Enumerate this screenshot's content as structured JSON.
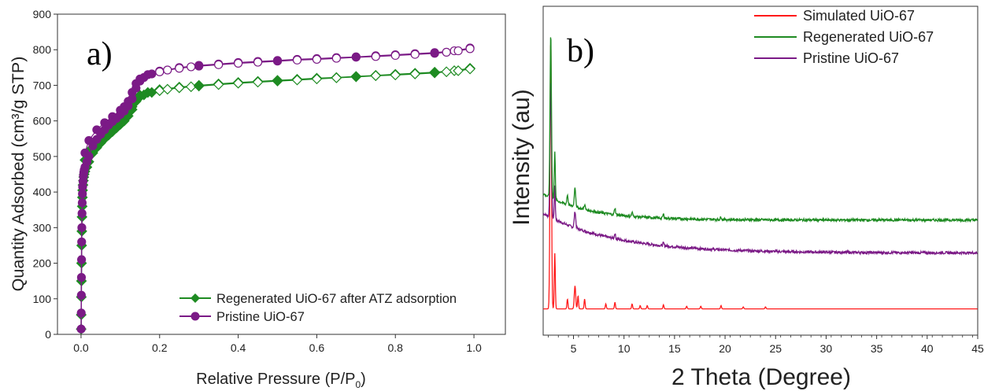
{
  "chart_data": [
    {
      "panel_label": "a)",
      "type": "scatter",
      "title": "",
      "xlabel": "Relative Pressure (P/P",
      "xlabel_sub": "0",
      "xlabel_close": ")",
      "ylabel": "Quantity Adsorbed (cm³/g STP)",
      "xlim": [
        -0.06,
        1.08
      ],
      "ylim": [
        0,
        900
      ],
      "xticks": [
        "0.0",
        "0.2",
        "0.4",
        "0.6",
        "0.8",
        "1.0"
      ],
      "xtick_values": [
        0,
        0.2,
        0.4,
        0.6,
        0.8,
        1.0
      ],
      "yticks": [
        "0",
        "100",
        "200",
        "300",
        "400",
        "500",
        "600",
        "700",
        "800",
        "900"
      ],
      "ytick_values": [
        0,
        100,
        200,
        300,
        400,
        500,
        600,
        700,
        800,
        900
      ],
      "legend_position": "bottom-right",
      "series": [
        {
          "name": "Pristine UiO-67",
          "color": "#7b1a86",
          "marker": "circle",
          "adsorption": [
            [
              0.0003,
              15
            ],
            [
              0.0005,
              60
            ],
            [
              0.0008,
              110
            ],
            [
              0.001,
              160
            ],
            [
              0.0013,
              210
            ],
            [
              0.0016,
              260
            ],
            [
              0.002,
              300
            ],
            [
              0.0025,
              340
            ],
            [
              0.003,
              370
            ],
            [
              0.0035,
              395
            ],
            [
              0.004,
              415
            ],
            [
              0.005,
              430
            ],
            [
              0.006,
              445
            ],
            [
              0.007,
              455
            ],
            [
              0.008,
              462
            ],
            [
              0.01,
              470
            ],
            [
              0.015,
              485
            ],
            [
              0.02,
              500
            ],
            [
              0.03,
              530
            ],
            [
              0.04,
              548
            ],
            [
              0.05,
              562
            ],
            [
              0.06,
              575
            ],
            [
              0.07,
              588
            ],
            [
              0.08,
              598
            ],
            [
              0.09,
              607
            ],
            [
              0.1,
              618
            ],
            [
              0.11,
              628
            ],
            [
              0.12,
              642
            ],
            [
              0.13,
              662
            ],
            [
              0.14,
              692
            ],
            [
              0.15,
              712
            ],
            [
              0.16,
              722
            ],
            [
              0.18,
              732
            ],
            [
              0.2,
              738
            ],
            [
              0.22,
              743
            ],
            [
              0.25,
              748
            ],
            [
              0.28,
              752
            ],
            [
              0.3,
              754
            ],
            [
              0.35,
              758
            ],
            [
              0.4,
              762
            ],
            [
              0.45,
              765
            ],
            [
              0.5,
              768
            ],
            [
              0.55,
              771
            ],
            [
              0.6,
              773
            ],
            [
              0.65,
              776
            ],
            [
              0.7,
              779
            ],
            [
              0.75,
              781
            ],
            [
              0.8,
              784
            ],
            [
              0.85,
              787
            ],
            [
              0.9,
              790
            ],
            [
              0.93,
              793
            ],
            [
              0.96,
              797
            ],
            [
              0.99,
              803
            ]
          ],
          "desorption": [
            [
              0.99,
              805
            ],
            [
              0.95,
              797
            ],
            [
              0.9,
              792
            ],
            [
              0.85,
              789
            ],
            [
              0.8,
              786
            ],
            [
              0.75,
              783
            ],
            [
              0.7,
              780
            ],
            [
              0.65,
              778
            ],
            [
              0.6,
              775
            ],
            [
              0.55,
              773
            ],
            [
              0.5,
              770
            ],
            [
              0.45,
              767
            ],
            [
              0.4,
              764
            ],
            [
              0.35,
              760
            ],
            [
              0.3,
              756
            ],
            [
              0.25,
              750
            ],
            [
              0.2,
              740
            ],
            [
              0.17,
              730
            ],
            [
              0.15,
              718
            ],
            [
              0.14,
              705
            ],
            [
              0.13,
              680
            ],
            [
              0.12,
              655
            ],
            [
              0.11,
              640
            ],
            [
              0.1,
              630
            ],
            [
              0.08,
              612
            ],
            [
              0.06,
              595
            ],
            [
              0.04,
              575
            ],
            [
              0.02,
              545
            ],
            [
              0.01,
              510
            ]
          ]
        },
        {
          "name": "Regenerated UiO-67 after ATZ adsorption",
          "color": "#1e8b22",
          "marker": "diamond",
          "adsorption": [
            [
              0.0003,
              15
            ],
            [
              0.0005,
              55
            ],
            [
              0.0008,
              105
            ],
            [
              0.001,
              150
            ],
            [
              0.0013,
              200
            ],
            [
              0.0016,
              250
            ],
            [
              0.002,
              290
            ],
            [
              0.0025,
              330
            ],
            [
              0.003,
              360
            ],
            [
              0.0035,
              385
            ],
            [
              0.004,
              405
            ],
            [
              0.005,
              420
            ],
            [
              0.006,
              432
            ],
            [
              0.007,
              442
            ],
            [
              0.008,
              450
            ],
            [
              0.01,
              458
            ],
            [
              0.015,
              470
            ],
            [
              0.02,
              485
            ],
            [
              0.03,
              510
            ],
            [
              0.04,
              525
            ],
            [
              0.05,
              538
            ],
            [
              0.06,
              550
            ],
            [
              0.07,
              560
            ],
            [
              0.08,
              570
            ],
            [
              0.09,
              580
            ],
            [
              0.1,
              590
            ],
            [
              0.11,
              600
            ],
            [
              0.12,
              614
            ],
            [
              0.13,
              632
            ],
            [
              0.14,
              655
            ],
            [
              0.15,
              668
            ],
            [
              0.16,
              673
            ],
            [
              0.18,
              680
            ],
            [
              0.2,
              685
            ],
            [
              0.22,
              689
            ],
            [
              0.25,
              693
            ],
            [
              0.28,
              696
            ],
            [
              0.3,
              698
            ],
            [
              0.35,
              702
            ],
            [
              0.4,
              706
            ],
            [
              0.45,
              709
            ],
            [
              0.5,
              712
            ],
            [
              0.55,
              715
            ],
            [
              0.6,
              718
            ],
            [
              0.65,
              721
            ],
            [
              0.7,
              724
            ],
            [
              0.75,
              727
            ],
            [
              0.8,
              729
            ],
            [
              0.85,
              732
            ],
            [
              0.9,
              735
            ],
            [
              0.93,
              738
            ],
            [
              0.96,
              741
            ],
            [
              0.99,
              746
            ]
          ],
          "desorption": [
            [
              0.99,
              748
            ],
            [
              0.95,
              741
            ],
            [
              0.9,
              737
            ],
            [
              0.85,
              734
            ],
            [
              0.8,
              731
            ],
            [
              0.75,
              728
            ],
            [
              0.7,
              725
            ],
            [
              0.65,
              722
            ],
            [
              0.6,
              720
            ],
            [
              0.55,
              717
            ],
            [
              0.5,
              714
            ],
            [
              0.45,
              711
            ],
            [
              0.4,
              708
            ],
            [
              0.35,
              704
            ],
            [
              0.3,
              700
            ],
            [
              0.25,
              695
            ],
            [
              0.2,
              688
            ],
            [
              0.17,
              680
            ],
            [
              0.15,
              672
            ],
            [
              0.14,
              660
            ],
            [
              0.13,
              640
            ],
            [
              0.12,
              622
            ],
            [
              0.11,
              610
            ],
            [
              0.1,
              600
            ],
            [
              0.08,
              585
            ],
            [
              0.06,
              565
            ],
            [
              0.04,
              545
            ],
            [
              0.02,
              515
            ],
            [
              0.01,
              490
            ]
          ]
        }
      ]
    },
    {
      "panel_label": "b)",
      "type": "line",
      "title": "",
      "xlabel": "2 Theta (Degree)",
      "ylabel": "Intensity (au)",
      "xlim": [
        2,
        45
      ],
      "xticks": [
        "5",
        "10",
        "15",
        "20",
        "25",
        "30",
        "35",
        "40",
        "45"
      ],
      "xtick_values": [
        5,
        10,
        15,
        20,
        25,
        30,
        35,
        40,
        45
      ],
      "y_ticks_shown": false,
      "legend_position": "top-right",
      "series": [
        {
          "name": "Simulated UiO-67",
          "color": "#ff1a1a",
          "baseline": 0.08,
          "peaks": [
            [
              2.75,
              0.82,
              0.07
            ],
            [
              3.15,
              0.17,
              0.05
            ],
            [
              4.4,
              0.03,
              0.05
            ],
            [
              5.15,
              0.07,
              0.07
            ],
            [
              5.45,
              0.04,
              0.05
            ],
            [
              6.1,
              0.03,
              0.05
            ],
            [
              8.2,
              0.015,
              0.05
            ],
            [
              9.1,
              0.02,
              0.05
            ],
            [
              10.8,
              0.015,
              0.05
            ],
            [
              11.6,
              0.01,
              0.05
            ],
            [
              12.3,
              0.01,
              0.05
            ],
            [
              13.9,
              0.012,
              0.05
            ],
            [
              16.2,
              0.008,
              0.05
            ],
            [
              17.6,
              0.008,
              0.05
            ],
            [
              19.6,
              0.01,
              0.05
            ],
            [
              21.8,
              0.006,
              0.05
            ],
            [
              24.0,
              0.006,
              0.05
            ]
          ]
        },
        {
          "name": "Regenerated UiO-67",
          "color": "#1e8b22",
          "baseline": 0.35,
          "hump_amplitude": 0.08,
          "hump_decay": 4.5,
          "peaks": [
            [
              2.75,
              0.5,
              0.07
            ],
            [
              3.15,
              0.15,
              0.05
            ],
            [
              4.4,
              0.03,
              0.06
            ],
            [
              5.15,
              0.06,
              0.07
            ],
            [
              6.1,
              0.015,
              0.06
            ],
            [
              9.1,
              0.02,
              0.06
            ],
            [
              10.8,
              0.012,
              0.06
            ],
            [
              13.9,
              0.012,
              0.06
            ],
            [
              19.6,
              0.008,
              0.06
            ]
          ]
        },
        {
          "name": "Pristine UiO-67",
          "color": "#7b1a86",
          "baseline": 0.25,
          "hump_amplitude": 0.12,
          "hump_decay": 7,
          "peaks": [
            [
              2.75,
              0.42,
              0.07
            ],
            [
              3.15,
              0.1,
              0.05
            ],
            [
              5.15,
              0.05,
              0.07
            ],
            [
              9.1,
              0.015,
              0.06
            ],
            [
              13.9,
              0.008,
              0.06
            ]
          ]
        }
      ]
    }
  ]
}
